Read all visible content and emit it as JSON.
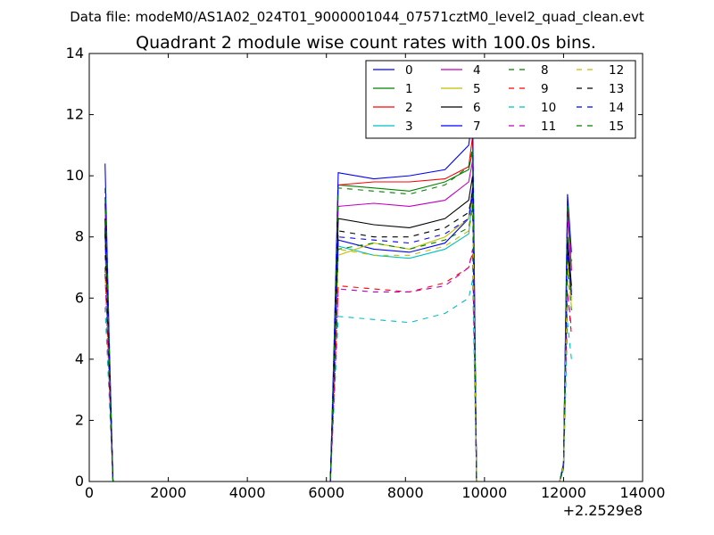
{
  "chart_data": {
    "type": "line",
    "suptitle": "Data file: modeM0/AS1A02_024T01_9000001044_07571cztM0_level2_quad_clean.evt",
    "title": "Quadrant 2 module wise count rates with 100.0s bins.",
    "xlabel": "",
    "ylabel": "",
    "x_offset_label": "+2.2529e8",
    "xlim": [
      0,
      14000
    ],
    "ylim": [
      0,
      14
    ],
    "xticks": [
      0,
      2000,
      4000,
      6000,
      8000,
      10000,
      12000,
      14000
    ],
    "yticks": [
      0,
      2,
      4,
      6,
      8,
      10,
      12,
      14
    ],
    "grid": false,
    "legend": {
      "placement": "top-right",
      "columns": 4
    },
    "gaps": [
      [
        600,
        6100
      ],
      [
        9800,
        11950
      ]
    ],
    "series": [
      {
        "name": "0",
        "color": "#0000ff",
        "dash": "solid",
        "x": [
          400,
          500,
          600,
          6000,
          6100,
          6200,
          6300,
          7200,
          8100,
          9000,
          9600,
          9700,
          9800,
          11900,
          12000,
          12100,
          12200
        ],
        "y": [
          8.2,
          4.3,
          0,
          0,
          0,
          3.9,
          7.9,
          7.6,
          7.5,
          7.8,
          8.6,
          9.6,
          0,
          0,
          0.5,
          7.6,
          6.2
        ]
      },
      {
        "name": "1",
        "color": "#008000",
        "dash": "solid",
        "x": [
          400,
          500,
          600,
          6000,
          6100,
          6200,
          6300,
          7200,
          8100,
          9000,
          9600,
          9700,
          9800,
          11900,
          12000,
          12100,
          12200
        ],
        "y": [
          9.3,
          4.4,
          0,
          0,
          0,
          4.4,
          9.7,
          9.6,
          9.5,
          9.8,
          10.2,
          10.8,
          0,
          0,
          0.5,
          8.9,
          7.0
        ]
      },
      {
        "name": "2",
        "color": "#ff0000",
        "dash": "solid",
        "x": [
          400,
          500,
          600,
          6000,
          6100,
          6200,
          6300,
          7200,
          8100,
          9000,
          9600,
          9700,
          9800,
          11900,
          12000,
          12100,
          12200
        ],
        "y": [
          9.1,
          4.4,
          0,
          0,
          0,
          4.3,
          9.7,
          9.8,
          9.8,
          9.9,
          10.3,
          11.3,
          0,
          0,
          0.5,
          8.8,
          6.9
        ]
      },
      {
        "name": "3",
        "color": "#00bfbf",
        "dash": "solid",
        "x": [
          400,
          500,
          600,
          6000,
          6100,
          6200,
          6300,
          7200,
          8100,
          9000,
          9600,
          9700,
          9800,
          11900,
          12000,
          12100,
          12200
        ],
        "y": [
          8.3,
          4.1,
          0,
          0,
          0,
          3.8,
          7.7,
          7.4,
          7.3,
          7.6,
          8.1,
          9.3,
          0,
          0,
          0.5,
          7.2,
          6.0
        ]
      },
      {
        "name": "4",
        "color": "#bf00bf",
        "dash": "solid",
        "x": [
          400,
          500,
          600,
          6000,
          6100,
          6200,
          6300,
          7200,
          8100,
          9000,
          9600,
          9700,
          9800,
          11900,
          12000,
          12100,
          12200
        ],
        "y": [
          9.1,
          4.4,
          0,
          0,
          0,
          4.2,
          9.0,
          9.1,
          9.0,
          9.2,
          9.8,
          10.5,
          0,
          0,
          0.5,
          8.7,
          6.9
        ]
      },
      {
        "name": "5",
        "color": "#bfbf00",
        "dash": "solid",
        "x": [
          400,
          500,
          600,
          6000,
          6100,
          6200,
          6300,
          7200,
          8100,
          9000,
          9600,
          9700,
          9800,
          11900,
          12000,
          12100,
          12200
        ],
        "y": [
          8.0,
          4.0,
          0,
          0,
          0,
          3.6,
          7.4,
          7.8,
          7.6,
          8.0,
          8.6,
          9.2,
          0,
          0,
          0.5,
          7.4,
          5.9
        ]
      },
      {
        "name": "6",
        "color": "#000000",
        "dash": "solid",
        "x": [
          400,
          500,
          600,
          6000,
          6100,
          6200,
          6300,
          7200,
          8100,
          9000,
          9600,
          9700,
          9800,
          11900,
          12000,
          12100,
          12200
        ],
        "y": [
          8.6,
          4.2,
          0,
          0,
          0,
          4.0,
          8.6,
          8.4,
          8.3,
          8.6,
          9.2,
          10.0,
          0,
          0,
          0.5,
          8.0,
          6.4
        ]
      },
      {
        "name": "7",
        "color": "#0000ff",
        "dash": "solid",
        "x": [
          400,
          500,
          600,
          6000,
          6100,
          6200,
          6300,
          7200,
          8100,
          9000,
          9600,
          9700,
          9800,
          11900,
          12000,
          12100,
          12200
        ],
        "y": [
          10.4,
          4.9,
          0,
          0,
          0,
          4.8,
          10.1,
          9.9,
          10.0,
          10.2,
          11.0,
          12.0,
          0,
          0,
          0.6,
          9.4,
          7.5
        ]
      },
      {
        "name": "8",
        "color": "#008000",
        "dash": "dashed",
        "x": [
          400,
          500,
          600,
          6000,
          6100,
          6200,
          6300,
          7200,
          8100,
          9000,
          9600,
          9700,
          9800,
          11900,
          12000,
          12100,
          12200
        ],
        "y": [
          7.4,
          3.8,
          0,
          0,
          0,
          3.5,
          7.6,
          7.8,
          7.6,
          7.9,
          8.3,
          9.0,
          0,
          0,
          0.5,
          7.0,
          5.6
        ]
      },
      {
        "name": "9",
        "color": "#ff0000",
        "dash": "dashed",
        "x": [
          400,
          500,
          600,
          6000,
          6100,
          6200,
          6300,
          7200,
          8100,
          9000,
          9600,
          9700,
          9800,
          11900,
          12000,
          12100,
          12200
        ],
        "y": [
          7.0,
          3.4,
          0,
          0,
          0,
          3.0,
          6.4,
          6.3,
          6.2,
          6.5,
          7.0,
          7.5,
          0,
          0,
          0.4,
          6.2,
          4.8
        ]
      },
      {
        "name": "10",
        "color": "#00bfbf",
        "dash": "dashed",
        "x": [
          400,
          500,
          600,
          6000,
          6100,
          6200,
          6300,
          7200,
          8100,
          9000,
          9600,
          9700,
          9800,
          11900,
          12000,
          12100,
          12200
        ],
        "y": [
          5.7,
          2.9,
          0,
          0,
          0,
          2.7,
          5.4,
          5.3,
          5.2,
          5.5,
          6.0,
          6.6,
          0,
          0,
          0.4,
          5.2,
          4.0
        ]
      },
      {
        "name": "11",
        "color": "#bf00bf",
        "dash": "dashed",
        "x": [
          400,
          500,
          600,
          6000,
          6100,
          6200,
          6300,
          7200,
          8100,
          9000,
          9600,
          9700,
          9800,
          11900,
          12000,
          12100,
          12200
        ],
        "y": [
          6.8,
          3.3,
          0,
          0,
          0,
          3.0,
          6.3,
          6.2,
          6.2,
          6.4,
          7.0,
          7.6,
          0,
          0,
          0.4,
          6.2,
          5.0
        ]
      },
      {
        "name": "12",
        "color": "#bfbf00",
        "dash": "dashed",
        "x": [
          400,
          500,
          600,
          6000,
          6100,
          6200,
          6300,
          7200,
          8100,
          9000,
          9600,
          9700,
          9800,
          11900,
          12000,
          12100,
          12200
        ],
        "y": [
          7.6,
          3.7,
          0,
          0,
          0,
          3.6,
          7.6,
          7.4,
          7.4,
          7.7,
          8.2,
          8.8,
          0,
          0,
          0.5,
          7.1,
          5.7
        ]
      },
      {
        "name": "13",
        "color": "#000000",
        "dash": "dashed",
        "x": [
          400,
          500,
          600,
          6000,
          6100,
          6200,
          6300,
          7200,
          8100,
          9000,
          9600,
          9700,
          9800,
          11900,
          12000,
          12100,
          12200
        ],
        "y": [
          8.1,
          4.1,
          0,
          0,
          0,
          3.9,
          8.2,
          8.0,
          8.0,
          8.3,
          8.8,
          9.5,
          0,
          0,
          0.5,
          7.7,
          6.1
        ]
      },
      {
        "name": "14",
        "color": "#0000ff",
        "dash": "dashed",
        "x": [
          400,
          500,
          600,
          6000,
          6100,
          6200,
          6300,
          7200,
          8100,
          9000,
          9600,
          9700,
          9800,
          11900,
          12000,
          12100,
          12200
        ],
        "y": [
          8.3,
          4.1,
          0,
          0,
          0,
          3.9,
          8.0,
          7.9,
          7.8,
          8.1,
          8.6,
          9.4,
          0,
          0,
          0.5,
          7.6,
          6.1
        ]
      },
      {
        "name": "15",
        "color": "#008000",
        "dash": "dashed",
        "x": [
          400,
          500,
          600,
          6000,
          6100,
          6200,
          6300,
          7200,
          8100,
          9000,
          9600,
          9700,
          9800,
          11900,
          12000,
          12100,
          12200
        ],
        "y": [
          9.6,
          4.6,
          0,
          0,
          0,
          4.5,
          9.6,
          9.5,
          9.4,
          9.7,
          10.3,
          10.9,
          0,
          0,
          0.5,
          9.1,
          7.2
        ]
      }
    ]
  }
}
